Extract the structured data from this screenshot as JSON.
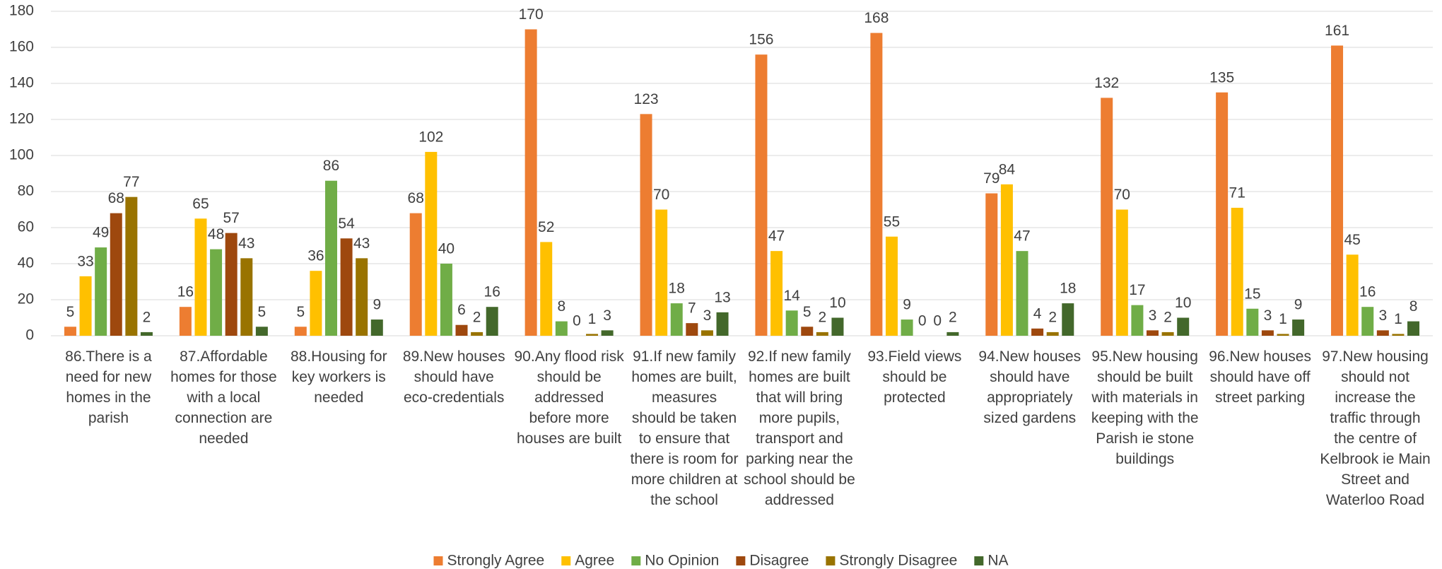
{
  "chart_data": {
    "type": "bar",
    "categories": [
      "86.There is a need for new homes in the parish",
      "87.Affordable homes for those with a local connection are needed",
      "88.Housing for key workers is needed",
      "89.New houses should have eco-credentials",
      "90.Any flood risk should be addressed before more houses are built",
      "91.If new family homes are built, measures should be taken to ensure that there is room for more children at the school",
      "92.If new family homes are built that will bring more pupils, transport and parking near the school should be addressed",
      "93.Field views should be protected",
      "94.New houses should have appropriately sized gardens",
      "95.New housing should be built with materials in keeping with the Parish ie stone buildings",
      "96.New houses should have off street parking",
      "97.New housing should not increase the traffic through the centre of Kelbrook ie Main Street and Waterloo Road"
    ],
    "series": [
      {
        "name": "Strongly Agree",
        "color": "#ED7D31",
        "values": [
          5,
          16,
          5,
          68,
          170,
          123,
          156,
          168,
          79,
          132,
          135,
          161
        ]
      },
      {
        "name": "Agree",
        "color": "#FFC000",
        "values": [
          33,
          65,
          36,
          102,
          52,
          70,
          47,
          55,
          84,
          70,
          71,
          45
        ]
      },
      {
        "name": "No Opinion",
        "color": "#70AD47",
        "values": [
          49,
          48,
          86,
          40,
          8,
          18,
          14,
          9,
          47,
          17,
          15,
          16
        ]
      },
      {
        "name": "Disagree",
        "color": "#9E480E",
        "values": [
          68,
          57,
          54,
          6,
          0,
          7,
          5,
          0,
          4,
          3,
          3,
          3
        ]
      },
      {
        "name": "Strongly Disagree",
        "color": "#997300",
        "values": [
          77,
          43,
          43,
          2,
          1,
          3,
          2,
          0,
          2,
          2,
          1,
          1
        ]
      },
      {
        "name": "NA",
        "color": "#43682B",
        "values": [
          2,
          5,
          9,
          16,
          3,
          13,
          10,
          2,
          18,
          10,
          9,
          8
        ]
      }
    ],
    "ylim": [
      0,
      180
    ],
    "yticks": [
      0,
      20,
      40,
      60,
      80,
      100,
      120,
      140,
      160,
      180
    ],
    "grid": true,
    "legend": "bottom",
    "value_labels_shown": true
  }
}
